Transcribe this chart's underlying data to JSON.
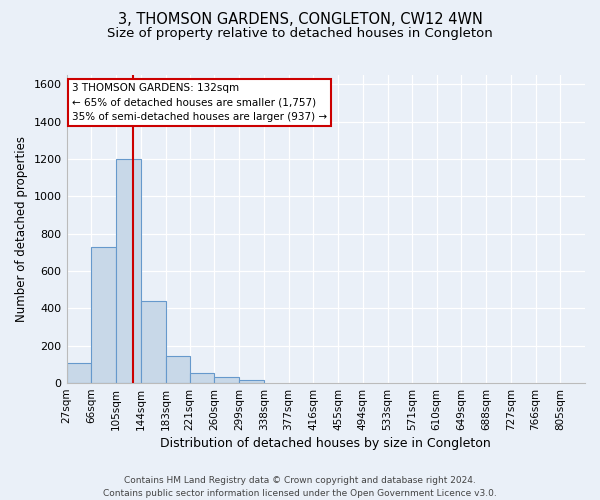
{
  "title1": "3, THOMSON GARDENS, CONGLETON, CW12 4WN",
  "title2": "Size of property relative to detached houses in Congleton",
  "xlabel": "Distribution of detached houses by size in Congleton",
  "ylabel": "Number of detached properties",
  "bin_edges": [
    27,
    66,
    105,
    144,
    183,
    221,
    260,
    299,
    338,
    377,
    416,
    455,
    494,
    533,
    571,
    610,
    649,
    688,
    727,
    766,
    805
  ],
  "bar_heights": [
    110,
    730,
    1200,
    440,
    145,
    55,
    30,
    15,
    0,
    0,
    0,
    0,
    0,
    0,
    0,
    0,
    0,
    0,
    0,
    0
  ],
  "bar_color": "#c8d8e8",
  "bar_edge_color": "#6699cc",
  "property_size": 132,
  "red_line_color": "#cc0000",
  "ylim": [
    0,
    1650
  ],
  "yticks": [
    0,
    200,
    400,
    600,
    800,
    1000,
    1200,
    1400,
    1600
  ],
  "annotation_title": "3 THOMSON GARDENS: 132sqm",
  "annotation_line1": "← 65% of detached houses are smaller (1,757)",
  "annotation_line2": "35% of semi-detached houses are larger (937) →",
  "annotation_box_color": "#ffffff",
  "annotation_border_color": "#cc0000",
  "footer1": "Contains HM Land Registry data © Crown copyright and database right 2024.",
  "footer2": "Contains public sector information licensed under the Open Government Licence v3.0.",
  "background_color": "#eaf0f8",
  "grid_color": "#ffffff",
  "title1_fontsize": 10.5,
  "title2_fontsize": 9.5
}
